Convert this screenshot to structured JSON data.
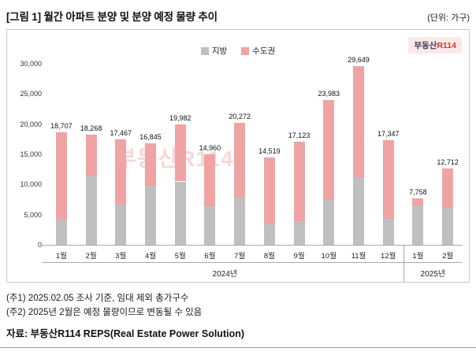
{
  "header": {
    "title": "[그림 1] 월간 아파트 분양 및 분양 예정 물량 추이",
    "unit": "(단위: 가구)"
  },
  "legend": [
    {
      "name": "jibang",
      "label": "지방",
      "color": "#bfbfbf"
    },
    {
      "name": "sudogwon",
      "label": "수도권",
      "color": "#f0a3a3"
    }
  ],
  "logo": {
    "text_black": "부동산",
    "text_red": "R114"
  },
  "watermark": "부동산R114",
  "chart_data": {
    "type": "bar",
    "stacked": true,
    "title": "월간 아파트 분양 및 분양 예정 물량 추이",
    "unit": "가구",
    "categories": [
      "1월",
      "2월",
      "3월",
      "4월",
      "5월",
      "6월",
      "7월",
      "8월",
      "9월",
      "10월",
      "11월",
      "12월",
      "1월",
      "2월"
    ],
    "year_groups": [
      {
        "label": "2024년",
        "span": 12
      },
      {
        "label": "2025년",
        "span": 2
      }
    ],
    "series": [
      {
        "name": "지방",
        "color": "#bfbfbf",
        "values": [
          4200,
          11500,
          6700,
          9800,
          10500,
          6400,
          7800,
          3400,
          3900,
          7400,
          11200,
          4300,
          6500,
          6100
        ]
      },
      {
        "name": "수도권",
        "color": "#f0a3a3",
        "values": [
          14507,
          6768,
          10767,
          7045,
          9482,
          8560,
          12472,
          11119,
          13223,
          16583,
          18449,
          13047,
          1258,
          6612
        ]
      }
    ],
    "totals": [
      18707,
      18268,
      17467,
      16845,
      19982,
      14960,
      20272,
      14519,
      17123,
      23983,
      29649,
      17347,
      7758,
      12712
    ],
    "total_labels": [
      "18,707",
      "18,268",
      "17,467",
      "16,845",
      "19,982",
      "14,960",
      "20,272",
      "14,519",
      "17,123",
      "23,983",
      "29,649",
      "17,347",
      "7,758",
      "12,712"
    ],
    "ylim": [
      0,
      30000
    ],
    "ytick_step": 5000,
    "yticks": [
      "30,000",
      "25,000",
      "20,000",
      "15,000",
      "10,000",
      "5,000",
      "0"
    ],
    "grid": false,
    "legend_position": "top-center"
  },
  "footnotes": [
    "(주1) 2025.02.05 조사 기준, 임대 제외 총가구수",
    "(주2) 2025년 2월은 예정 물량이므로 변동될 수 있음"
  ],
  "source": "자료: 부동산R114 REPS(Real Estate Power Solution)"
}
